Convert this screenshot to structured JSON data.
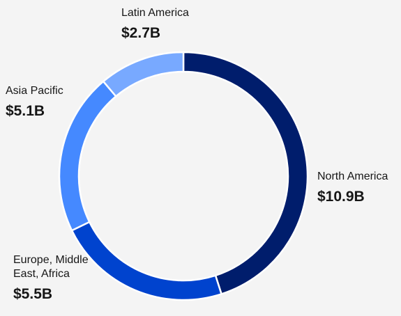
{
  "chart_data": {
    "type": "donut",
    "categories": [
      "North America",
      "Europe, Middle East, Africa",
      "Asia Pacific",
      "Latin America"
    ],
    "values": [
      10.9,
      5.5,
      5.1,
      2.7
    ],
    "value_labels": [
      "$10.9B",
      "$5.5B",
      "$5.1B",
      "$2.7B"
    ],
    "colors": [
      "#001d6c",
      "#0043ce",
      "#4589ff",
      "#78a9ff"
    ]
  }
}
